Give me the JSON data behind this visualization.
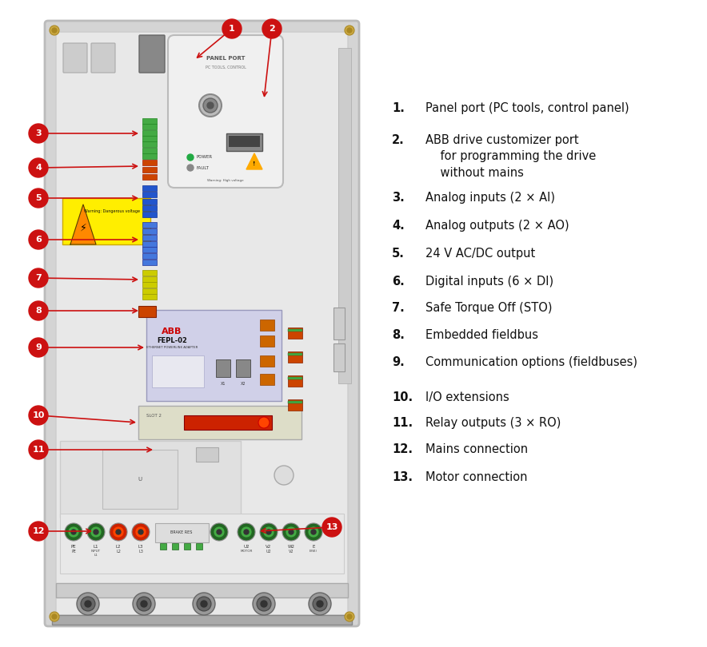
{
  "bg_color": "#ffffff",
  "accent_red": "#cc1111",
  "label_color": "#1a1a1a",
  "legend_items": [
    {
      "num": "1.",
      "text": "Panel port (PC tools, control panel)",
      "bold_num": true
    },
    {
      "num": "2.",
      "text": "ABB drive customizer port\n    for programming the drive\n    without mains",
      "bold_num": true
    },
    {
      "num": "3.",
      "text": "Analog inputs (2 × AI)",
      "bold_num": true
    },
    {
      "num": "4.",
      "text": "Analog outputs (2 × AO)",
      "bold_num": true
    },
    {
      "num": "5.",
      "text": "24 V AC/DC output",
      "bold_num": true
    },
    {
      "num": "6.",
      "text": "Digital inputs (6 × DI)",
      "bold_num": true
    },
    {
      "num": "7.",
      "text": "Safe Torque Off (STO)",
      "bold_num": true
    },
    {
      "num": "8.",
      "text": "Embedded fieldbus",
      "bold_num": true
    },
    {
      "num": "9.",
      "text": "Communication options (fieldbuses)",
      "bold_num": true
    },
    {
      "num": "10.",
      "text": "I/O extensions",
      "bold_num": true
    },
    {
      "num": "11.",
      "text": "Relay outputs (3 × RO)",
      "bold_num": true
    },
    {
      "num": "12.",
      "text": "Mains connection",
      "bold_num": true
    },
    {
      "num": "13.",
      "text": "Motor connection",
      "bold_num": true
    }
  ]
}
